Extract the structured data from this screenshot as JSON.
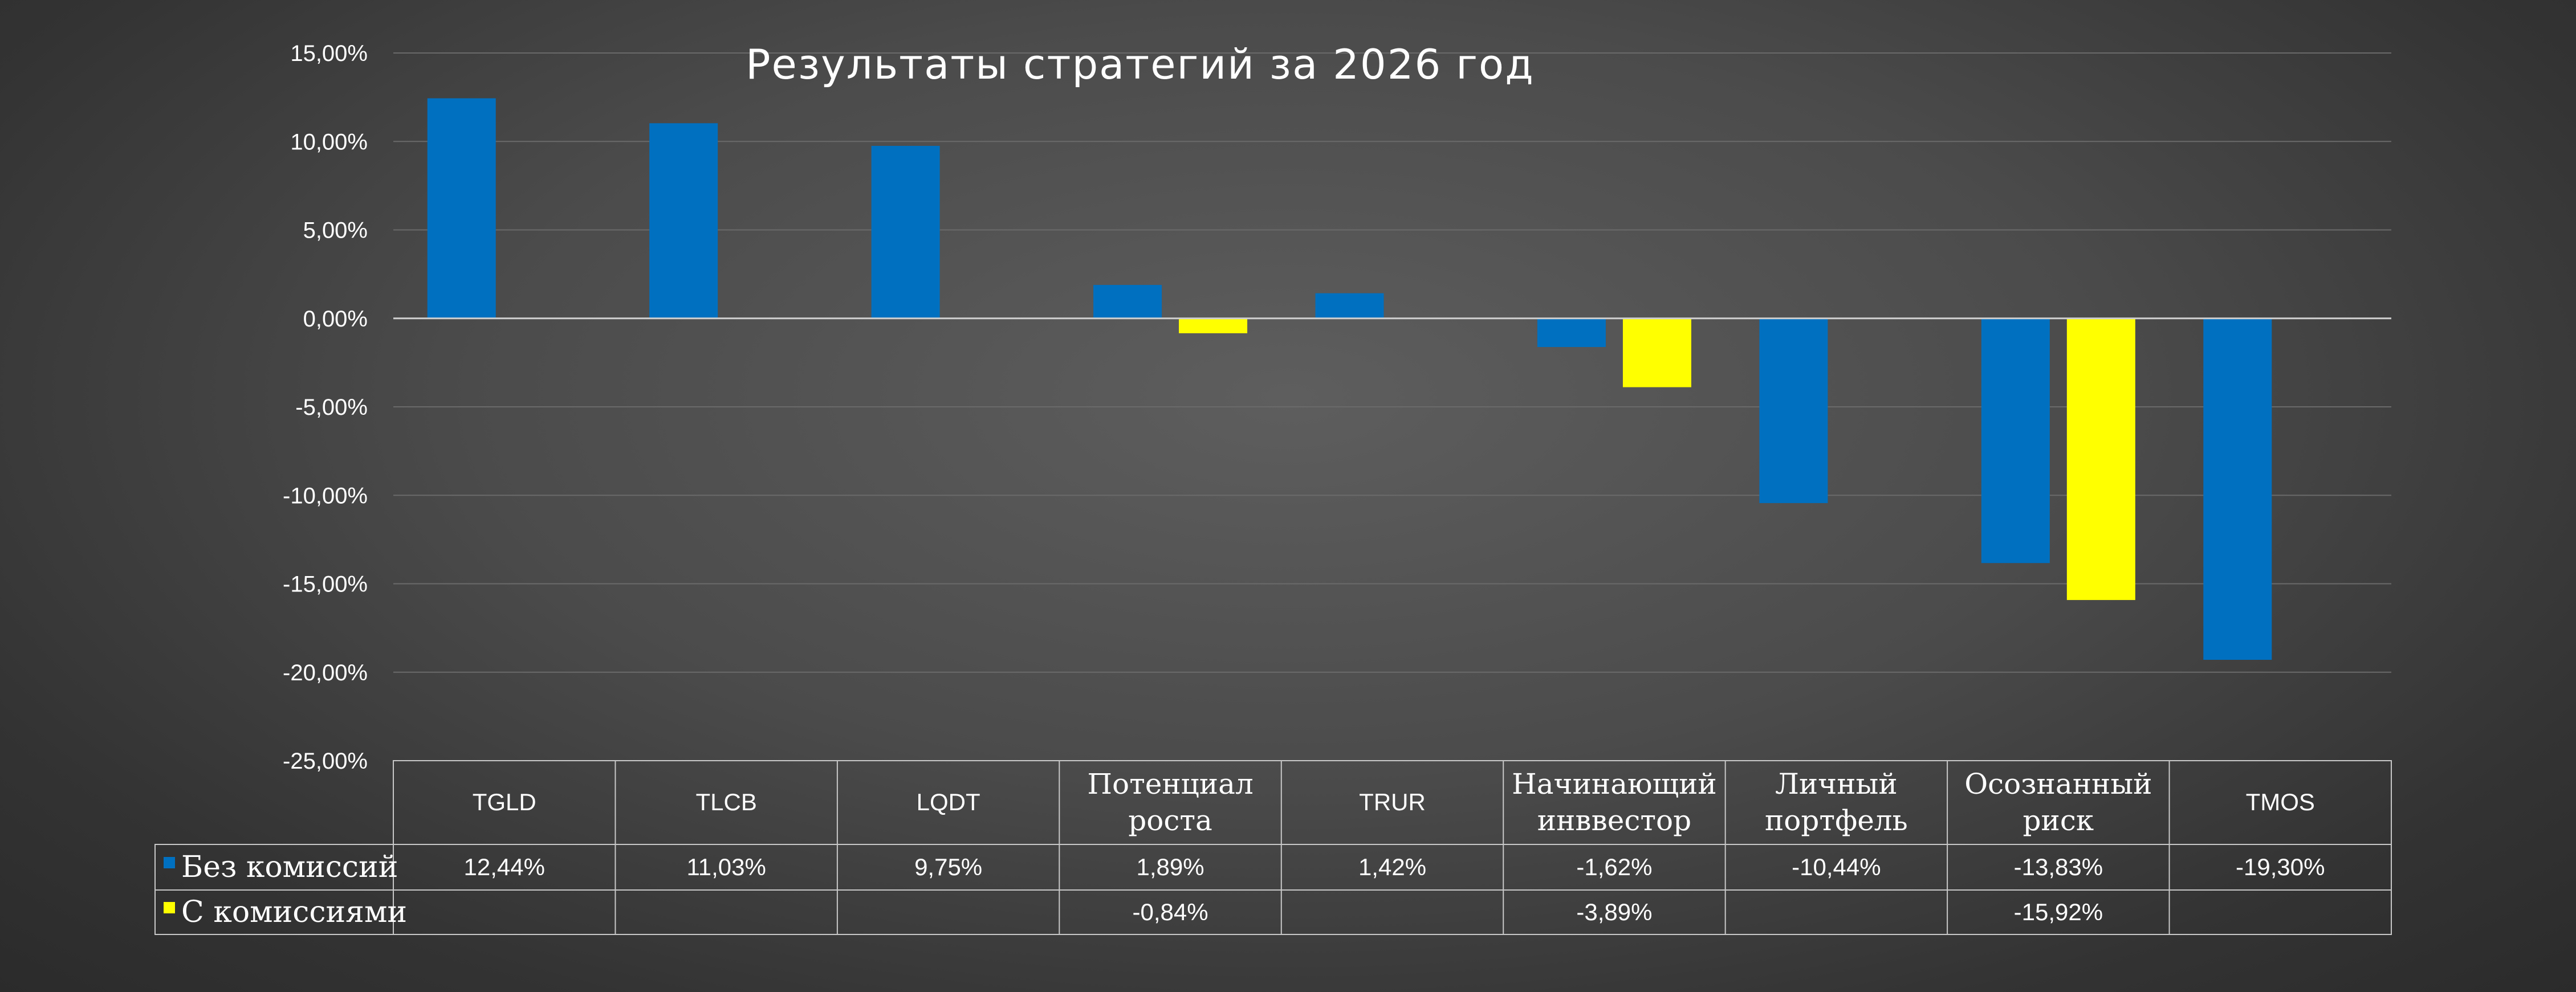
{
  "chart_data": {
    "type": "bar",
    "title": "Результаты стратегий за 2026 год",
    "categories": [
      [
        "TGLD"
      ],
      [
        "TLCB"
      ],
      [
        "LQDT"
      ],
      [
        "Потенциал",
        "роста"
      ],
      [
        "TRUR"
      ],
      [
        "Начинающий",
        "инввестор"
      ],
      [
        "Личный",
        "портфель"
      ],
      [
        "Осознанный",
        "риск"
      ],
      [
        "TMOS"
      ]
    ],
    "series": [
      {
        "name": "Без комиссий",
        "color": "#0070C0",
        "values": [
          12.44,
          11.03,
          9.75,
          1.89,
          1.42,
          -1.62,
          -10.44,
          -13.83,
          -19.3
        ],
        "labels": [
          "12,44%",
          "11,03%",
          "9,75%",
          "1,89%",
          "1,42%",
          "-1,62%",
          "-10,44%",
          "-13,83%",
          "-19,30%"
        ]
      },
      {
        "name": "С комиссиями",
        "color": "#FFFF00",
        "values": [
          null,
          null,
          null,
          -0.84,
          null,
          -3.89,
          null,
          -15.92,
          null
        ],
        "labels": [
          "",
          "",
          "",
          "-0,84%",
          "",
          "-3,89%",
          "",
          "-15,92%",
          ""
        ]
      }
    ],
    "ylim": [
      -25,
      15
    ],
    "yticks": [
      15,
      10,
      5,
      0,
      -5,
      -10,
      -15,
      -20,
      -25
    ],
    "ytick_labels": [
      "15,00%",
      "10,00%",
      "5,00%",
      "0,00%",
      "-5,00%",
      "-10,00%",
      "-15,00%",
      "-20,00%",
      "-25,00%"
    ],
    "grid": true,
    "legend": "data-table",
    "xlabel": "",
    "ylabel": ""
  }
}
